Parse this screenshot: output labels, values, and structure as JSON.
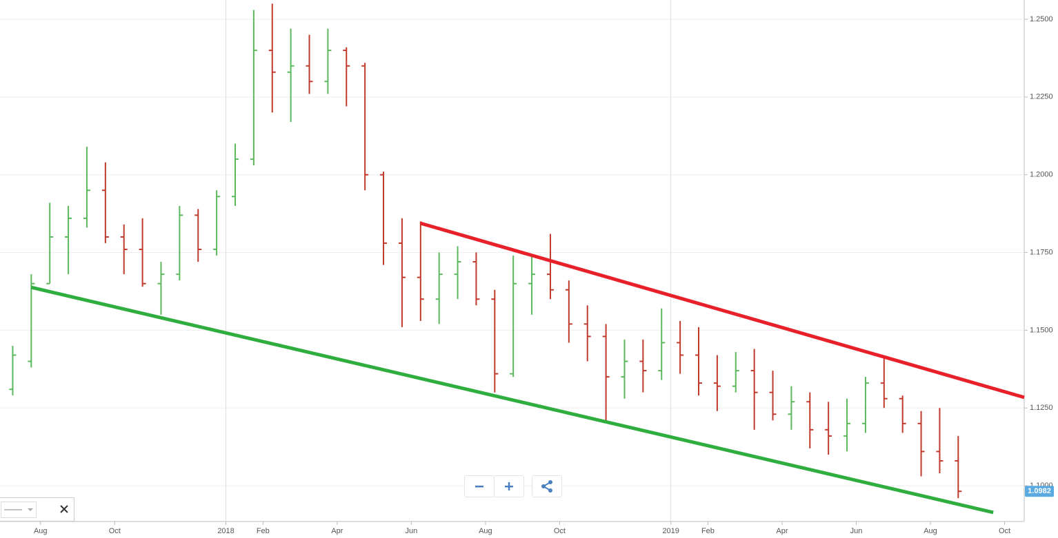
{
  "chart_data": {
    "type": "ohlc",
    "categories": [
      null,
      null,
      "Aug",
      null,
      null,
      null,
      "Oct",
      null,
      null,
      null,
      null,
      null,
      "2018",
      null,
      "Feb",
      null,
      null,
      null,
      "Apr",
      null,
      null,
      null,
      "Jun",
      null,
      null,
      null,
      "Aug",
      null,
      null,
      null,
      "Oct",
      null,
      null,
      null,
      null,
      null,
      "2019",
      null,
      "Feb",
      null,
      null,
      null,
      "Apr",
      null,
      null,
      null,
      "Jun",
      null,
      null,
      null,
      "Aug",
      null,
      null,
      null,
      "Oct"
    ],
    "open": [
      1.131,
      1.14,
      1.165,
      1.18,
      1.186,
      1.195,
      1.18,
      1.176,
      1.165,
      1.168,
      1.187,
      1.176,
      1.193,
      1.205,
      1.24,
      1.233,
      1.235,
      1.23,
      1.24,
      1.235,
      1.2,
      1.178,
      1.167,
      1.16,
      1.168,
      1.172,
      1.16,
      1.136,
      1.165,
      1.168,
      1.163,
      1.152,
      1.148,
      1.135,
      1.14,
      1.137,
      1.146,
      1.142,
      1.133,
      1.132,
      1.137,
      1.13,
      1.123,
      1.127,
      1.118,
      1.116,
      1.12,
      1.133,
      1.128,
      1.12,
      1.111,
      1.108,
      null,
      null,
      null
    ],
    "high": [
      1.145,
      1.168,
      1.191,
      1.19,
      1.209,
      1.204,
      1.184,
      1.186,
      1.172,
      1.19,
      1.189,
      1.195,
      1.21,
      1.253,
      1.255,
      1.247,
      1.245,
      1.247,
      1.241,
      1.236,
      1.201,
      1.186,
      1.185,
      1.175,
      1.177,
      1.175,
      1.163,
      1.174,
      1.174,
      1.181,
      1.166,
      1.158,
      1.152,
      1.147,
      1.147,
      1.157,
      1.153,
      1.151,
      1.142,
      1.143,
      1.144,
      1.137,
      1.132,
      1.13,
      1.127,
      1.128,
      1.135,
      1.141,
      1.129,
      1.124,
      1.125,
      1.116,
      null,
      null,
      null
    ],
    "low": [
      1.129,
      1.138,
      1.165,
      1.168,
      1.183,
      1.178,
      1.168,
      1.164,
      1.155,
      1.166,
      1.172,
      1.174,
      1.19,
      1.203,
      1.22,
      1.217,
      1.226,
      1.226,
      1.222,
      1.195,
      1.171,
      1.151,
      1.153,
      1.152,
      1.16,
      1.158,
      1.13,
      1.135,
      1.155,
      1.16,
      1.146,
      1.14,
      1.121,
      1.128,
      1.13,
      1.134,
      1.136,
      1.129,
      1.124,
      1.13,
      1.118,
      1.121,
      1.118,
      1.112,
      1.11,
      1.111,
      1.117,
      1.125,
      1.117,
      1.103,
      1.104,
      1.096,
      null,
      null,
      null
    ],
    "close": [
      1.142,
      1.165,
      1.18,
      1.186,
      1.195,
      1.18,
      1.176,
      1.165,
      1.168,
      1.187,
      1.176,
      1.193,
      1.205,
      1.24,
      1.233,
      1.235,
      1.23,
      1.24,
      1.235,
      1.2,
      1.178,
      1.167,
      1.16,
      1.168,
      1.172,
      1.16,
      1.136,
      1.165,
      1.168,
      1.163,
      1.152,
      1.148,
      1.135,
      1.14,
      1.137,
      1.146,
      1.142,
      1.133,
      1.132,
      1.137,
      1.13,
      1.123,
      1.127,
      1.118,
      1.116,
      1.12,
      1.133,
      1.128,
      1.12,
      1.111,
      1.108,
      1.0982,
      null,
      null,
      null
    ],
    "up_color": "#5cb85c",
    "down_color": "#c0392b",
    "ylim": [
      1.0885,
      1.2562
    ],
    "yticks": [
      {
        "value": 1.1,
        "label": "1.1000"
      },
      {
        "value": 1.125,
        "label": "1.1250"
      },
      {
        "value": 1.15,
        "label": "1.1500"
      },
      {
        "value": 1.175,
        "label": "1.1750"
      },
      {
        "value": 1.2,
        "label": "1.2000"
      },
      {
        "value": 1.225,
        "label": "1.2250"
      },
      {
        "value": 1.25,
        "label": "1.2500"
      }
    ],
    "grid": true,
    "last_price": 1.0982,
    "lines": [
      {
        "color": "#e8202a",
        "x": [
          22.5,
          55.06
        ],
        "y": [
          1.1844,
          1.1284
        ]
      },
      {
        "color": "#2fae3f",
        "x": [
          1.49,
          53.39
        ],
        "y": [
          1.1638,
          1.0914
        ]
      }
    ]
  }
}
